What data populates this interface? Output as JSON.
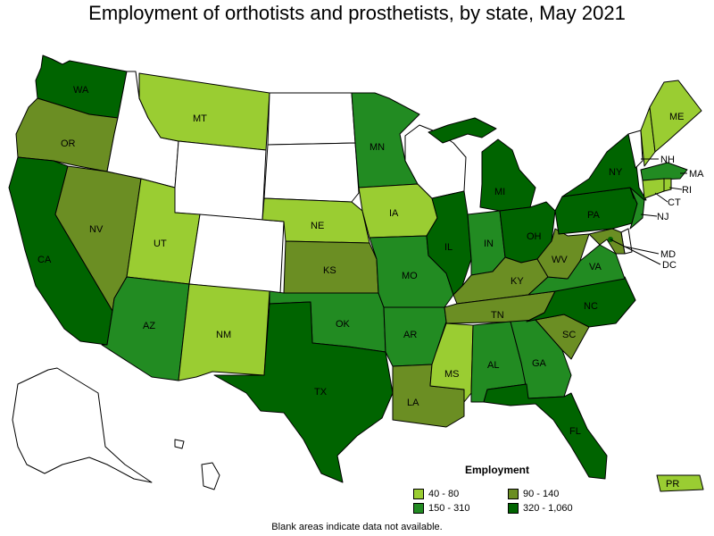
{
  "title": "Employment of orthotists and prosthetists, by state, May 2021",
  "colors": {
    "bin1": "#9acd32",
    "bin2": "#228b22",
    "bin3": "#6b8e23",
    "bin4": "#006400",
    "nodata": "#ffffff"
  },
  "legend": {
    "title": "Employment",
    "items": [
      {
        "label": "40 - 80",
        "color": "#9acd32"
      },
      {
        "label": "90 - 140",
        "color": "#6b8e23"
      },
      {
        "label": "150 - 310",
        "color": "#228b22"
      },
      {
        "label": "320 - 1,060",
        "color": "#006400"
      }
    ]
  },
  "footnote": "Blank areas indicate data not available.",
  "states": [
    {
      "abbr": "WA",
      "bin": "bin4"
    },
    {
      "abbr": "OR",
      "bin": "bin3"
    },
    {
      "abbr": "CA",
      "bin": "bin4"
    },
    {
      "abbr": "NV",
      "bin": "bin3"
    },
    {
      "abbr": "ID",
      "bin": "nodata"
    },
    {
      "abbr": "MT",
      "bin": "bin1"
    },
    {
      "abbr": "WY",
      "bin": "nodata"
    },
    {
      "abbr": "UT",
      "bin": "bin1"
    },
    {
      "abbr": "AZ",
      "bin": "bin2"
    },
    {
      "abbr": "CO",
      "bin": "nodata"
    },
    {
      "abbr": "NM",
      "bin": "bin1"
    },
    {
      "abbr": "ND",
      "bin": "nodata"
    },
    {
      "abbr": "SD",
      "bin": "nodata"
    },
    {
      "abbr": "NE",
      "bin": "bin1"
    },
    {
      "abbr": "KS",
      "bin": "bin3"
    },
    {
      "abbr": "OK",
      "bin": "bin2"
    },
    {
      "abbr": "TX",
      "bin": "bin4"
    },
    {
      "abbr": "MN",
      "bin": "bin2"
    },
    {
      "abbr": "IA",
      "bin": "bin1"
    },
    {
      "abbr": "MO",
      "bin": "bin2"
    },
    {
      "abbr": "AR",
      "bin": "bin2"
    },
    {
      "abbr": "LA",
      "bin": "bin3"
    },
    {
      "abbr": "WI",
      "bin": "nodata"
    },
    {
      "abbr": "IL",
      "bin": "bin4"
    },
    {
      "abbr": "MI",
      "bin": "bin4"
    },
    {
      "abbr": "IN",
      "bin": "bin2"
    },
    {
      "abbr": "OH",
      "bin": "bin4"
    },
    {
      "abbr": "KY",
      "bin": "bin3"
    },
    {
      "abbr": "TN",
      "bin": "bin3"
    },
    {
      "abbr": "MS",
      "bin": "bin1"
    },
    {
      "abbr": "AL",
      "bin": "bin2"
    },
    {
      "abbr": "GA",
      "bin": "bin2"
    },
    {
      "abbr": "FL",
      "bin": "bin4"
    },
    {
      "abbr": "SC",
      "bin": "bin3"
    },
    {
      "abbr": "NC",
      "bin": "bin4"
    },
    {
      "abbr": "VA",
      "bin": "bin2"
    },
    {
      "abbr": "WV",
      "bin": "bin3"
    },
    {
      "abbr": "PA",
      "bin": "bin4"
    },
    {
      "abbr": "NY",
      "bin": "bin4"
    },
    {
      "abbr": "VT",
      "bin": "nodata"
    },
    {
      "abbr": "NH",
      "bin": "bin1"
    },
    {
      "abbr": "ME",
      "bin": "bin1"
    },
    {
      "abbr": "MA",
      "bin": "bin2"
    },
    {
      "abbr": "RI",
      "bin": "bin1"
    },
    {
      "abbr": "CT",
      "bin": "bin1"
    },
    {
      "abbr": "NJ",
      "bin": "bin2"
    },
    {
      "abbr": "DE",
      "bin": "nodata"
    },
    {
      "abbr": "MD",
      "bin": "bin3"
    },
    {
      "abbr": "DC",
      "bin": "bin4"
    },
    {
      "abbr": "AK",
      "bin": "nodata"
    },
    {
      "abbr": "HI",
      "bin": "nodata"
    },
    {
      "abbr": "PR",
      "bin": "bin1"
    }
  ],
  "labels": {
    "WA": "WA",
    "OR": "OR",
    "CA": "CA",
    "NV": "NV",
    "MT": "MT",
    "UT": "UT",
    "AZ": "AZ",
    "NM": "NM",
    "NE": "NE",
    "KS": "KS",
    "OK": "OK",
    "TX": "TX",
    "MN": "MN",
    "IA": "IA",
    "MO": "MO",
    "AR": "AR",
    "LA": "LA",
    "IL": "IL",
    "MI": "MI",
    "IN": "IN",
    "OH": "OH",
    "KY": "KY",
    "TN": "TN",
    "MS": "MS",
    "AL": "AL",
    "GA": "GA",
    "FL": "FL",
    "SC": "SC",
    "NC": "NC",
    "VA": "VA",
    "WV": "WV",
    "PA": "PA",
    "NY": "NY",
    "ME": "ME",
    "NH": "NH",
    "MA": "MA",
    "RI": "RI",
    "CT": "CT",
    "NJ": "NJ",
    "MD": "MD",
    "DC": "DC",
    "PR": "PR"
  }
}
